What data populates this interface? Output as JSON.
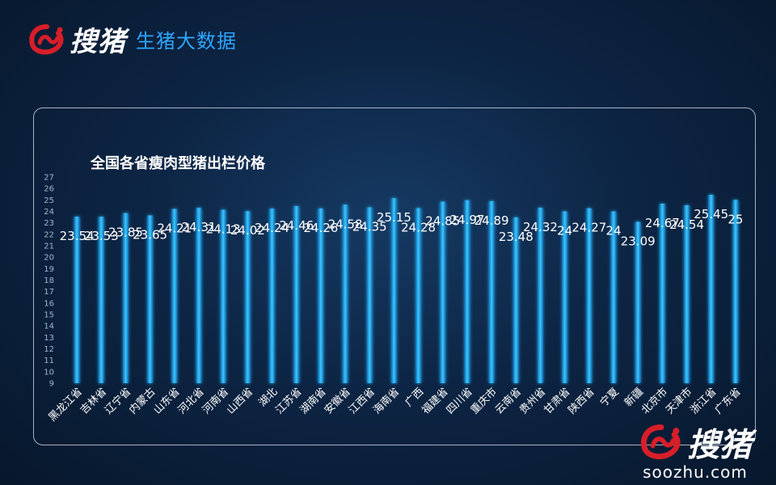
{
  "header": {
    "logo_text": "搜猪",
    "subtitle": "生猪大数据"
  },
  "watermark": {
    "logo_text": "搜猪",
    "url": "soozhu.com"
  },
  "colors": {
    "bar": "#29b6f6",
    "bar_glow": "#0288d1",
    "brand_red": "#d81e28",
    "accent_blue": "#2ea6ff"
  },
  "chart_data": {
    "type": "bar",
    "title": "全国各省瘦肉型猪出栏价格",
    "xlabel": "",
    "ylabel": "",
    "ylim": [
      9,
      27
    ],
    "yticks": [
      9,
      10,
      11,
      12,
      13,
      14,
      15,
      16,
      17,
      18,
      19,
      20,
      21,
      22,
      23,
      24,
      25,
      26,
      27
    ],
    "grid": false,
    "categories": [
      "黑龙江省",
      "吉林省",
      "辽宁省",
      "内蒙古",
      "山东省",
      "河北省",
      "河南省",
      "山西省",
      "湖北",
      "江苏省",
      "湖南省",
      "安徽省",
      "江西省",
      "海南省",
      "广西",
      "福建省",
      "四川省",
      "重庆市",
      "云南省",
      "贵州省",
      "甘肃省",
      "陕西省",
      "宁夏",
      "新疆",
      "北京市",
      "天津市",
      "浙江省",
      "广东省"
    ],
    "values": [
      23.54,
      23.53,
      23.85,
      23.65,
      24.21,
      24.31,
      24.13,
      24.02,
      24.24,
      24.46,
      24.26,
      24.58,
      24.35,
      25.15,
      24.28,
      24.85,
      24.97,
      24.89,
      23.48,
      24.32,
      24,
      24.27,
      24,
      23.09,
      24.67,
      24.54,
      25.45,
      25
    ]
  }
}
